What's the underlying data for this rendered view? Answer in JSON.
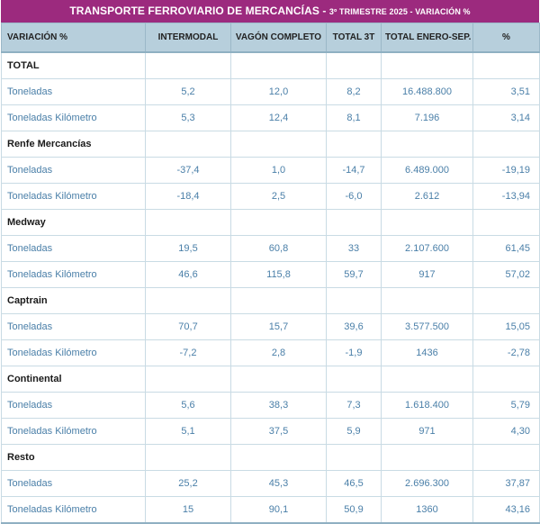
{
  "title": {
    "main": "TRANSPORTE FERROVIARIO DE MERCANCÍAS - ",
    "sub": "3º TRIMESTRE 2025 - VARIACIÓN %"
  },
  "columns": [
    "VARIACIÓN %",
    "INTERMODAL",
    "VAGÓN COMPLETO",
    "TOTAL 3T",
    "TOTAL ENERO-SEP.",
    "%"
  ],
  "groups": [
    {
      "name": "TOTAL",
      "rows": [
        {
          "label": "Toneladas",
          "values": [
            "5,2",
            "12,0",
            "8,2",
            "16.488.800",
            "3,51"
          ]
        },
        {
          "label": "Toneladas Kilómetro",
          "values": [
            "5,3",
            "12,4",
            "8,1",
            "7.196",
            "3,14"
          ]
        }
      ]
    },
    {
      "name": "Renfe Mercancías",
      "rows": [
        {
          "label": "Toneladas",
          "values": [
            "-37,4",
            "1,0",
            "-14,7",
            "6.489.000",
            "-19,19"
          ]
        },
        {
          "label": "Toneladas Kilómetro",
          "values": [
            "-18,4",
            "2,5",
            "-6,0",
            "2.612",
            "-13,94"
          ]
        }
      ]
    },
    {
      "name": "Medway",
      "rows": [
        {
          "label": "Toneladas",
          "values": [
            "19,5",
            "60,8",
            "33",
            "2.107.600",
            "61,45"
          ]
        },
        {
          "label": "Toneladas Kilómetro",
          "values": [
            "46,6",
            "115,8",
            "59,7",
            "917",
            "57,02"
          ]
        }
      ]
    },
    {
      "name": "Captrain",
      "rows": [
        {
          "label": "Toneladas",
          "values": [
            "70,7",
            "15,7",
            "39,6",
            "3.577.500",
            "15,05"
          ]
        },
        {
          "label": "Toneladas Kilómetro",
          "values": [
            "-7,2",
            "2,8",
            "-1,9",
            "1436",
            "-2,78"
          ]
        }
      ]
    },
    {
      "name": "Continental",
      "rows": [
        {
          "label": "Toneladas",
          "values": [
            "5,6",
            "38,3",
            "7,3",
            "1.618.400",
            "5,79"
          ]
        },
        {
          "label": "Toneladas Kilómetro",
          "values": [
            "5,1",
            "37,5",
            "5,9",
            "971",
            "4,30"
          ]
        }
      ]
    },
    {
      "name": "Resto",
      "rows": [
        {
          "label": "Toneladas",
          "values": [
            "25,2",
            "45,3",
            "46,5",
            "2.696.300",
            "37,87"
          ]
        },
        {
          "label": "Toneladas Kilómetro",
          "values": [
            "15",
            "90,1",
            "50,9",
            "1360",
            "43,16"
          ]
        }
      ]
    }
  ]
}
